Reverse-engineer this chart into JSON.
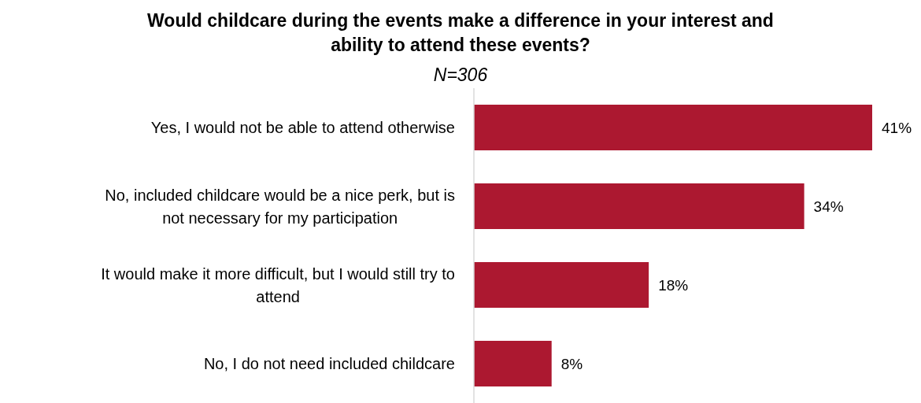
{
  "chart_data": {
    "type": "bar",
    "orientation": "horizontal",
    "title": "Would childcare during the events make a difference in your interest and ability to attend these events?",
    "subtitle": "N=306",
    "categories": [
      "Yes, I would not be able to attend otherwise",
      "No, included childcare would be a nice perk, but is not necessary for my participation",
      "It would make it more difficult, but I would still try to attend",
      "No, I do not need included childcare"
    ],
    "values": [
      41,
      34,
      18,
      8
    ],
    "value_labels": [
      "41%",
      "34%",
      "18%",
      "8%"
    ],
    "color": "#ac1830",
    "tick_labels": "y"
  }
}
